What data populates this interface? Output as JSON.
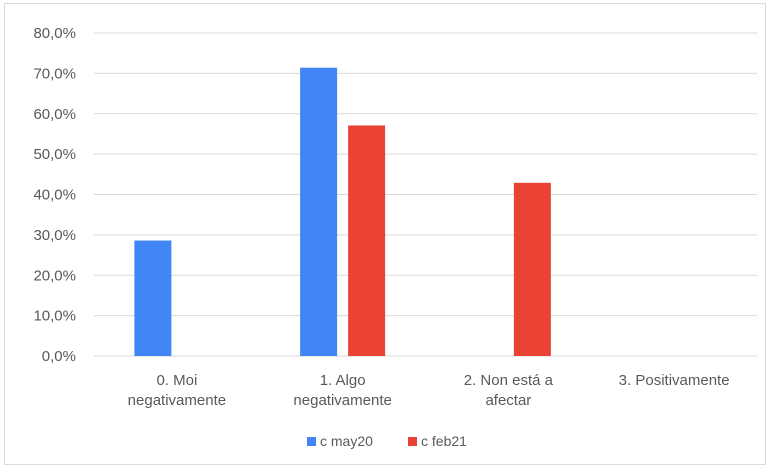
{
  "chart_data": {
    "type": "bar",
    "title": "",
    "xlabel": "",
    "ylabel": "",
    "categories": [
      [
        "0. Moi",
        "negativamente"
      ],
      [
        "1. Algo",
        "negativamente"
      ],
      [
        "2. Non está a",
        "afectar"
      ],
      [
        "3. Positivamente"
      ]
    ],
    "series": [
      {
        "name": "c may20",
        "color": "#4285f4",
        "values": [
          28.6,
          71.4,
          0,
          0
        ]
      },
      {
        "name": "c feb21",
        "color": "#ea4335",
        "values": [
          0,
          57.1,
          42.9,
          0
        ]
      }
    ],
    "ylim": [
      0,
      80
    ],
    "yticks": [
      "0,0%",
      "10,0%",
      "20,0%",
      "30,0%",
      "40,0%",
      "50,0%",
      "60,0%",
      "70,0%",
      "80,0%"
    ],
    "grid": true,
    "legend_position": "bottom"
  }
}
